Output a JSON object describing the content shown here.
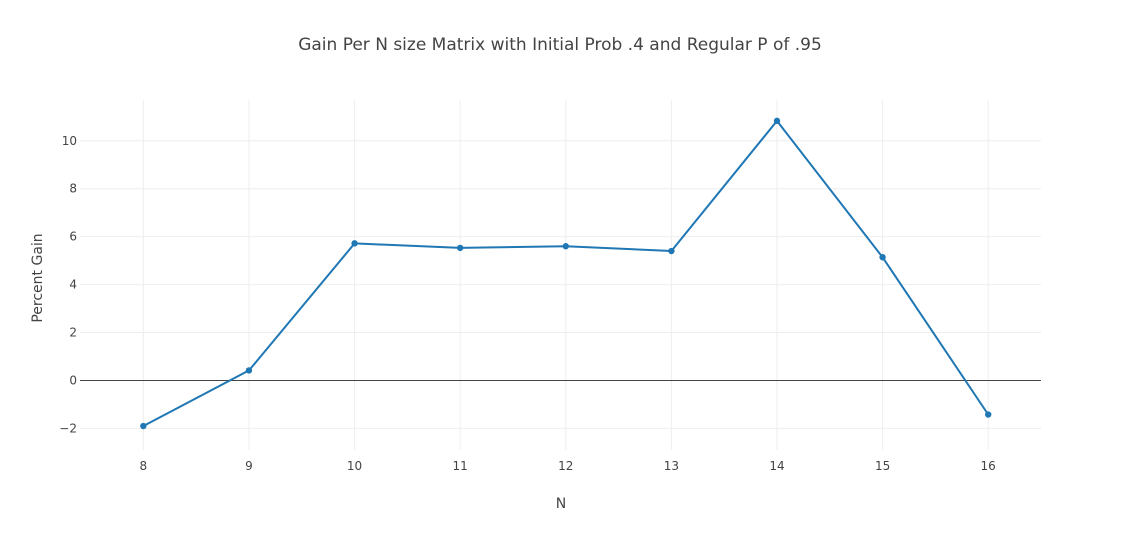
{
  "chart_data": {
    "type": "line",
    "title": "Gain Per N size Matrix with Initial Prob .4 and Regular P of .95",
    "xlabel": "N",
    "ylabel": "Percent Gain",
    "x": [
      8,
      9,
      10,
      11,
      12,
      13,
      14,
      15,
      16
    ],
    "series": [
      {
        "values": [
          -1.9,
          0.42,
          5.72,
          5.53,
          5.6,
          5.4,
          10.83,
          5.14,
          -1.42
        ]
      }
    ],
    "xlim": [
      7.4,
      16.5
    ],
    "ylim": [
      -2.9,
      11.7
    ],
    "x_ticks": [
      "8",
      "9",
      "10",
      "11",
      "12",
      "13",
      "14",
      "15",
      "16"
    ],
    "y_ticks": [
      "−2",
      "0",
      "2",
      "4",
      "6",
      "8",
      "10"
    ],
    "y_tick_values": [
      -2,
      0,
      2,
      4,
      6,
      8,
      10
    ],
    "grid": true,
    "line_color": "#1f77b4",
    "zero_line_color": "#444444",
    "grid_color": "#eeeeee"
  }
}
